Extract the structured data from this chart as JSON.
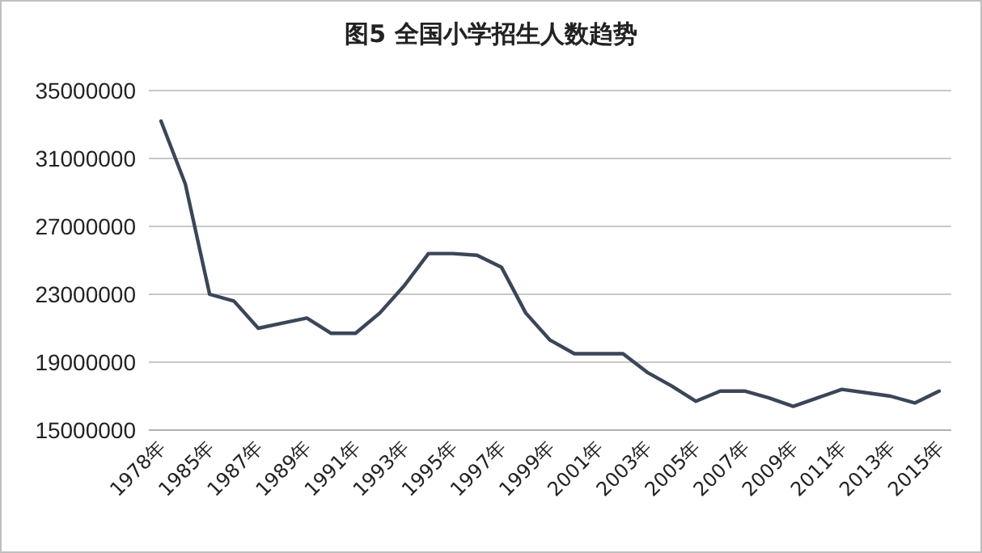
{
  "chart_data": {
    "type": "line",
    "title": "图5  全国小学招生人数趋势",
    "categories": [
      "1978年",
      null,
      "1985年",
      null,
      "1987年",
      null,
      "1989年",
      null,
      "1991年",
      null,
      "1993年",
      null,
      "1995年",
      null,
      "1997年",
      null,
      "1999年",
      null,
      "2001年",
      null,
      "2003年",
      null,
      "2005年",
      null,
      "2007年",
      null,
      "2009年",
      null,
      "2011年",
      null,
      "2013年",
      null,
      "2015年"
    ],
    "series": [
      {
        "color": "#3b4658",
        "values": [
          33200000,
          29500000,
          23000000,
          22600000,
          21000000,
          21300000,
          21600000,
          20700000,
          20700000,
          21900000,
          23500000,
          25400000,
          25400000,
          25300000,
          24600000,
          21900000,
          20300000,
          19500000,
          19500000,
          19500000,
          18400000,
          17600000,
          16700000,
          17300000,
          17300000,
          16900000,
          16400000,
          16900000,
          17400000,
          17200000,
          17000000,
          16600000,
          17300000
        ]
      }
    ],
    "ylim": [
      15000000,
      35000000
    ],
    "yticks": [
      15000000,
      19000000,
      23000000,
      27000000,
      31000000,
      35000000
    ],
    "grid": "y",
    "marker": "none",
    "line_style": "solid"
  }
}
